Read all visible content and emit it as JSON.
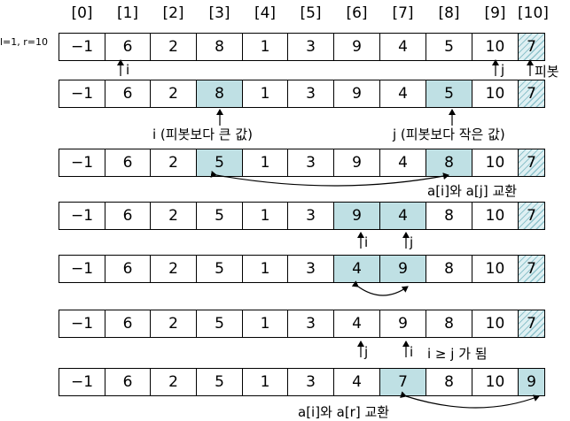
{
  "indices": [
    "[0]",
    "[1]",
    "[2]",
    "[3]",
    "[4]",
    "[5]",
    "[6]",
    "[7]",
    "[8]",
    "[9]",
    "[10]"
  ],
  "range_label": "l=1, r=10",
  "rows": [
    {
      "values": [
        "−1",
        "6",
        "2",
        "8",
        "1",
        "3",
        "9",
        "4",
        "5",
        "10",
        "7"
      ],
      "highlight": []
    },
    {
      "values": [
        "−1",
        "6",
        "2",
        "8",
        "1",
        "3",
        "9",
        "4",
        "5",
        "10",
        "7"
      ],
      "highlight": [
        3,
        8
      ]
    },
    {
      "values": [
        "−1",
        "6",
        "2",
        "5",
        "1",
        "3",
        "9",
        "4",
        "8",
        "10",
        "7"
      ],
      "highlight": [
        3,
        8
      ]
    },
    {
      "values": [
        "−1",
        "6",
        "2",
        "5",
        "1",
        "3",
        "9",
        "4",
        "8",
        "10",
        "7"
      ],
      "highlight": [
        6,
        7
      ]
    },
    {
      "values": [
        "−1",
        "6",
        "2",
        "5",
        "1",
        "3",
        "4",
        "9",
        "8",
        "10",
        "7"
      ],
      "highlight": [
        6,
        7
      ]
    },
    {
      "values": [
        "−1",
        "6",
        "2",
        "5",
        "1",
        "3",
        "4",
        "9",
        "8",
        "10",
        "7"
      ],
      "highlight": []
    },
    {
      "values": [
        "−1",
        "6",
        "2",
        "5",
        "1",
        "3",
        "4",
        "7",
        "8",
        "10",
        "9"
      ],
      "highlight": [
        7,
        10
      ]
    }
  ],
  "pivot_index": 10,
  "labels": {
    "i": "i",
    "j": "j",
    "pivot": "피봇",
    "i_bigger": "i (피봇보다 큰 값)",
    "j_smaller": "j (피봇보다 작은 값)",
    "swap_ij": "a[i]와 a[j] 교환",
    "i_ge_j": "i ≥ j 가 됨",
    "swap_ir": "a[i]와 a[r] 교환"
  },
  "colors": {
    "highlight": "#bfe0e4",
    "pivot_hatch": "#8fc3cc"
  }
}
